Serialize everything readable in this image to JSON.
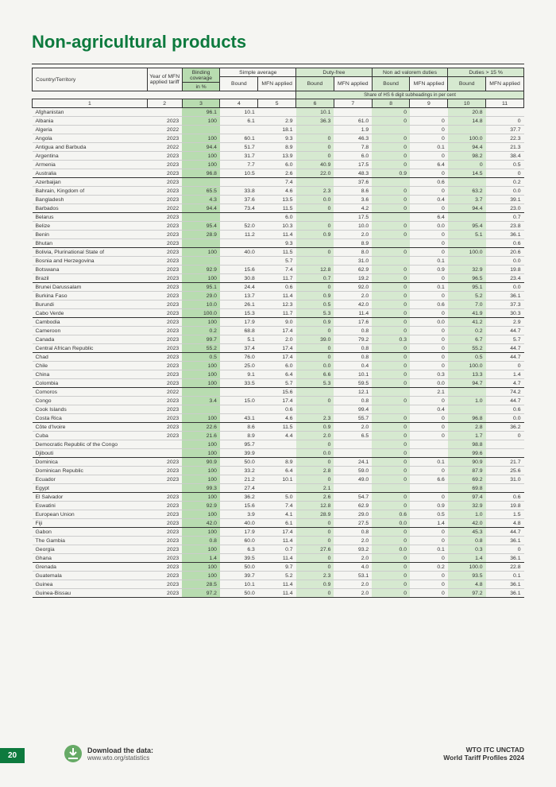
{
  "title": "Non-agricultural products",
  "footer": {
    "page": "20",
    "dl_title": "Download the data:",
    "dl_url": "www.wto.org/statistics",
    "src1": "WTO ITC UNCTAD",
    "src2": "World Tariff Profiles 2024"
  },
  "cols": {
    "country": "Country/Territory",
    "year": "Year of MFN applied tariff",
    "binding": "Binding coverage",
    "binding_pct": "in %",
    "simple": "Simple average",
    "duty": "Duty-free",
    "nonad": "Non ad valorem duties",
    "d15": "Duties > 15 %",
    "bound": "Bound",
    "mfn": "MFN applied",
    "share": "Share of HS 6 digit subheadings in per cent",
    "nums": [
      "1",
      "2",
      "3",
      "4",
      "5",
      "6",
      "7",
      "8",
      "9",
      "10",
      "11"
    ]
  },
  "colors": {
    "title": "#0d7a3e",
    "page_bg": "#0d7a3e",
    "hl": "#d6e9d0",
    "bc": "#b8dcb0"
  },
  "rows": [
    [
      "Afghanistan",
      "",
      "96.1",
      "10.1",
      "",
      "10.1",
      "",
      "0",
      "",
      "20.8",
      ""
    ],
    [
      "Albania",
      "2023",
      "100",
      "6.1",
      "2.9",
      "36.3",
      "61.0",
      "0",
      "0",
      "14.8",
      "0"
    ],
    [
      "Algeria",
      "2022",
      "",
      "",
      "18.1",
      "",
      "1.9",
      "",
      "0",
      "",
      "37.7"
    ],
    [
      "Angola",
      "2023",
      "100",
      "60.1",
      "9.3",
      "0",
      "46.3",
      "0",
      "0",
      "100.0",
      "22.3"
    ],
    [
      "Antigua and Barbuda",
      "2022",
      "94.4",
      "51.7",
      "8.9",
      "0",
      "7.8",
      "0",
      "0.1",
      "94.4",
      "21.3"
    ],
    [
      "Argentina",
      "2023",
      "100",
      "31.7",
      "13.9",
      "0",
      "6.0",
      "0",
      "0",
      "98.2",
      "38.4"
    ],
    [
      "Armenia",
      "2023",
      "100",
      "7.7",
      "6.0",
      "40.9",
      "17.5",
      "0",
      "6.4",
      "0",
      "0.5"
    ],
    [
      "Australia",
      "2023",
      "96.8",
      "10.5",
      "2.6",
      "22.0",
      "48.3",
      "0.9",
      "0",
      "14.5",
      "0"
    ],
    [
      "Azerbaijan",
      "2023",
      "",
      "",
      "7.4",
      "",
      "37.6",
      "",
      "0.6",
      "",
      "0.2"
    ],
    [
      "Bahrain, Kingdom of",
      "2023",
      "65.5",
      "33.8",
      "4.6",
      "2.3",
      "8.6",
      "0",
      "0",
      "63.2",
      "0.0"
    ],
    [
      "Bangladesh",
      "2023",
      "4.3",
      "37.6",
      "13.5",
      "0.0",
      "3.6",
      "0",
      "0.4",
      "3.7",
      "39.1"
    ],
    [
      "Barbados",
      "2022",
      "94.4",
      "73.4",
      "11.5",
      "0",
      "4.2",
      "0",
      "0",
      "94.4",
      "23.0"
    ],
    [
      "Belarus",
      "2023",
      "",
      "",
      "6.0",
      "",
      "17.5",
      "",
      "6.4",
      "",
      "0.7"
    ],
    [
      "Belize",
      "2023",
      "95.4",
      "52.0",
      "10.3",
      "0",
      "10.0",
      "0",
      "0.0",
      "95.4",
      "23.8"
    ],
    [
      "Benin",
      "2023",
      "28.9",
      "11.2",
      "11.4",
      "0.9",
      "2.0",
      "0",
      "0",
      "5.1",
      "36.1"
    ],
    [
      "Bhutan",
      "2023",
      "",
      "",
      "9.3",
      "",
      "8.9",
      "",
      "0",
      "",
      "0.6"
    ],
    [
      "Bolivia, Plurinational State of",
      "2023",
      "100",
      "40.0",
      "11.5",
      "0",
      "8.0",
      "0",
      "0",
      "100.0",
      "20.6"
    ],
    [
      "Bosnia and Herzegovina",
      "2023",
      "",
      "",
      "5.7",
      "",
      "31.0",
      "",
      "0.1",
      "",
      "0.0"
    ],
    [
      "Botswana",
      "2023",
      "92.9",
      "15.6",
      "7.4",
      "12.8",
      "62.9",
      "0",
      "0.9",
      "32.9",
      "19.8"
    ],
    [
      "Brazil",
      "2023",
      "100",
      "30.8",
      "11.7",
      "0.7",
      "19.2",
      "0",
      "0",
      "96.5",
      "23.4"
    ],
    [
      "Brunei Darussalam",
      "2023",
      "95.1",
      "24.4",
      "0.6",
      "0",
      "92.0",
      "0",
      "0.1",
      "95.1",
      "0.0"
    ],
    [
      "Burkina Faso",
      "2023",
      "29.0",
      "13.7",
      "11.4",
      "0.9",
      "2.0",
      "0",
      "0",
      "5.2",
      "36.1"
    ],
    [
      "Burundi",
      "2023",
      "10.0",
      "26.1",
      "12.3",
      "0.5",
      "42.0",
      "0",
      "0.6",
      "7.0",
      "37.3"
    ],
    [
      "Cabo Verde",
      "2023",
      "100.0",
      "15.3",
      "11.7",
      "5.3",
      "11.4",
      "0",
      "0",
      "41.9",
      "30.3"
    ],
    [
      "Cambodia",
      "2023",
      "100",
      "17.9",
      "9.0",
      "0.9",
      "17.6",
      "0",
      "0.0",
      "41.2",
      "2.9"
    ],
    [
      "Cameroon",
      "2023",
      "0.2",
      "68.8",
      "17.4",
      "0",
      "0.8",
      "0",
      "0",
      "0.2",
      "44.7"
    ],
    [
      "Canada",
      "2023",
      "99.7",
      "5.1",
      "2.0",
      "39.0",
      "79.2",
      "0.3",
      "0",
      "6.7",
      "5.7"
    ],
    [
      "Central African Republic",
      "2023",
      "55.2",
      "37.4",
      "17.4",
      "0",
      "0.8",
      "0",
      "0",
      "55.2",
      "44.7"
    ],
    [
      "Chad",
      "2023",
      "0.5",
      "76.0",
      "17.4",
      "0",
      "0.8",
      "0",
      "0",
      "0.5",
      "44.7"
    ],
    [
      "Chile",
      "2023",
      "100",
      "25.0",
      "6.0",
      "0.0",
      "0.4",
      "0",
      "0",
      "100.0",
      "0"
    ],
    [
      "China",
      "2023",
      "100",
      "9.1",
      "6.4",
      "6.6",
      "10.1",
      "0",
      "0.3",
      "13.3",
      "1.4"
    ],
    [
      "Colombia",
      "2023",
      "100",
      "33.5",
      "5.7",
      "5.3",
      "59.5",
      "0",
      "0.0",
      "94.7",
      "4.7"
    ],
    [
      "Comoros",
      "2022",
      "",
      "",
      "15.6",
      "",
      "12.1",
      "",
      "2.1",
      "",
      "74.2"
    ],
    [
      "Congo",
      "2023",
      "3.4",
      "15.0",
      "17.4",
      "0",
      "0.8",
      "0",
      "0",
      "1.0",
      "44.7"
    ],
    [
      "Cook Islands",
      "2023",
      "",
      "",
      "0.6",
      "",
      "99.4",
      "",
      "0.4",
      "",
      "0.6"
    ],
    [
      "Costa Rica",
      "2023",
      "100",
      "43.1",
      "4.6",
      "2.3",
      "55.7",
      "0",
      "0",
      "96.8",
      "0.0"
    ],
    [
      "Côte d'Ivoire",
      "2023",
      "22.6",
      "8.6",
      "11.5",
      "0.9",
      "2.0",
      "0",
      "0",
      "2.8",
      "36.2"
    ],
    [
      "Cuba",
      "2023",
      "21.6",
      "8.9",
      "4.4",
      "2.0",
      "6.5",
      "0",
      "0",
      "1.7",
      "0"
    ],
    [
      "Democratic Republic of the Congo",
      "",
      "100",
      "95.7",
      "",
      "0",
      "",
      "0",
      "",
      "98.8",
      ""
    ],
    [
      "Djibouti",
      "",
      "100",
      "39.9",
      "",
      "0.0",
      "",
      "0",
      "",
      "99.6",
      ""
    ],
    [
      "Dominica",
      "2023",
      "90.9",
      "50.0",
      "8.9",
      "0",
      "24.1",
      "0",
      "0.1",
      "90.9",
      "21.7"
    ],
    [
      "Dominican Republic",
      "2023",
      "100",
      "33.2",
      "6.4",
      "2.8",
      "59.0",
      "0",
      "0",
      "87.9",
      "25.6"
    ],
    [
      "Ecuador",
      "2023",
      "100",
      "21.2",
      "10.1",
      "0",
      "49.0",
      "0",
      "6.6",
      "69.2",
      "31.0"
    ],
    [
      "Egypt",
      "",
      "99.3",
      "27.4",
      "",
      "2.1",
      "",
      "",
      "",
      "69.8",
      ""
    ],
    [
      "El Salvador",
      "2023",
      "100",
      "36.2",
      "5.0",
      "2.6",
      "54.7",
      "0",
      "0",
      "97.4",
      "0.6"
    ],
    [
      "Eswatini",
      "2023",
      "92.9",
      "15.6",
      "7.4",
      "12.8",
      "62.9",
      "0",
      "0.9",
      "32.9",
      "19.8"
    ],
    [
      "European Union",
      "2023",
      "100",
      "3.9",
      "4.1",
      "28.9",
      "29.0",
      "0.6",
      "0.5",
      "1.0",
      "1.5"
    ],
    [
      "Fiji",
      "2023",
      "42.0",
      "40.0",
      "6.1",
      "0",
      "27.5",
      "0.0",
      "1.4",
      "42.0",
      "4.8"
    ],
    [
      "Gabon",
      "2023",
      "100",
      "17.9",
      "17.4",
      "0",
      "0.8",
      "0",
      "0",
      "45.3",
      "44.7"
    ],
    [
      "The Gambia",
      "2023",
      "0.8",
      "60.0",
      "11.4",
      "0",
      "2.0",
      "0",
      "0",
      "0.8",
      "36.1"
    ],
    [
      "Georgia",
      "2023",
      "100",
      "6.3",
      "0.7",
      "27.6",
      "93.2",
      "0.0",
      "0.1",
      "0.3",
      "0"
    ],
    [
      "Ghana",
      "2023",
      "1.4",
      "39.5",
      "11.4",
      "0",
      "2.0",
      "0",
      "0",
      "1.4",
      "36.1"
    ],
    [
      "Grenada",
      "2023",
      "100",
      "50.0",
      "9.7",
      "0",
      "4.0",
      "0",
      "0.2",
      "100.0",
      "22.8"
    ],
    [
      "Guatemala",
      "2023",
      "100",
      "39.7",
      "5.2",
      "2.3",
      "53.1",
      "0",
      "0",
      "93.5",
      "0.1"
    ],
    [
      "Guinea",
      "2023",
      "28.5",
      "10.1",
      "11.4",
      "0.9",
      "2.0",
      "0",
      "0",
      "4.8",
      "36.1"
    ],
    [
      "Guinea-Bissau",
      "2023",
      "97.2",
      "50.0",
      "11.4",
      "0",
      "2.0",
      "0",
      "0",
      "97.2",
      "36.1"
    ]
  ],
  "seps": [
    7,
    11,
    15,
    19,
    23,
    27,
    31,
    35,
    39,
    43,
    47,
    51,
    55
  ]
}
